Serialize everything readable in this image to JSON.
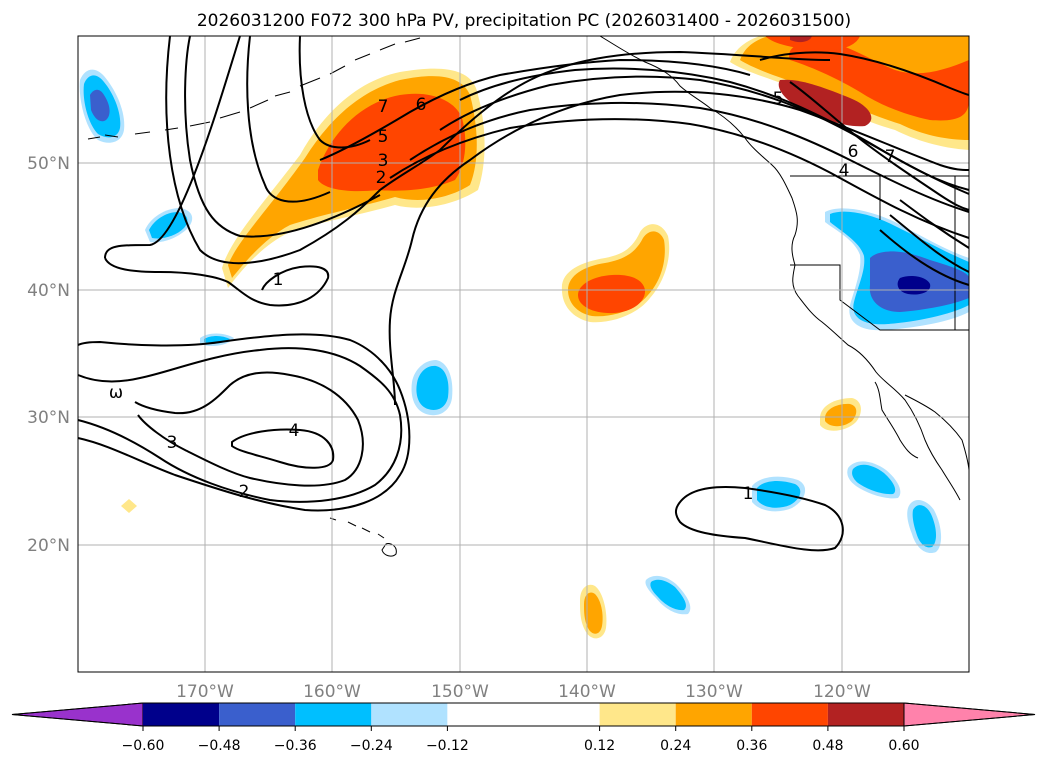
{
  "chart_data": {
    "type": "contour map",
    "title": "2026031200 F072 300 hPa PV, precipitation PC (2026031400 - 2026031500)",
    "map": {
      "lon_range": [
        -180,
        -110
      ],
      "lat_range": [
        10,
        60
      ],
      "grid_lons": [
        -170,
        -160,
        -150,
        -140,
        -130,
        -120
      ],
      "grid_lats": [
        20,
        30,
        40,
        50
      ],
      "x_tick_labels": [
        "170°W",
        "160°W",
        "150°W",
        "140°W",
        "130°W",
        "120°W"
      ],
      "y_tick_labels": [
        "20°N",
        "30°N",
        "40°N",
        "50°N"
      ]
    },
    "pv_contour_labels": [
      "7",
      "6",
      "5",
      "3",
      "2",
      "1",
      "ω",
      "3",
      "4",
      "2",
      "1",
      "5",
      "6",
      "4",
      "7"
    ],
    "colorbar": {
      "tick_labels": [
        "−0.60",
        "−0.48",
        "−0.36",
        "−0.24",
        "−0.12",
        "0.12",
        "0.24",
        "0.36",
        "0.48",
        "0.60"
      ],
      "ticks": [
        -0.6,
        -0.48,
        -0.36,
        -0.24,
        -0.12,
        0.12,
        0.24,
        0.36,
        0.48,
        0.6
      ],
      "levels": [
        -0.72,
        -0.6,
        -0.48,
        -0.36,
        -0.24,
        -0.12,
        0.12,
        0.24,
        0.36,
        0.48,
        0.6,
        0.72
      ],
      "colors": [
        "#9932cc",
        "#00008b",
        "#3a5fcd",
        "#00bfff",
        "#b0e2ff",
        "#ffffff",
        "#ffe78a",
        "#ffa500",
        "#ff4500",
        "#b22222",
        "#ff82ab"
      ],
      "extend": "both"
    }
  }
}
